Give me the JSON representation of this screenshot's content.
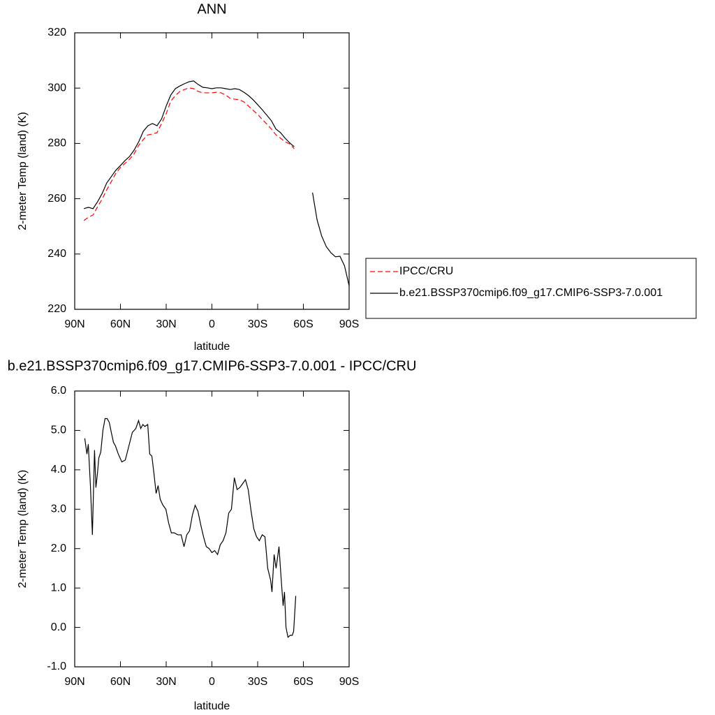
{
  "chart_data": [
    {
      "type": "line",
      "title": "ANN",
      "xlabel": "latitude",
      "ylabel": "2-meter Temp (land) (K)",
      "x": [
        84,
        81,
        78,
        75,
        72,
        69,
        66,
        63,
        60,
        57,
        54,
        51,
        48,
        45,
        42,
        39,
        36,
        33,
        30,
        27,
        24,
        21,
        18,
        15,
        12,
        9,
        6,
        3,
        0,
        -3,
        -6,
        -9,
        -12,
        -15,
        -18,
        -21,
        -24,
        -27,
        -30,
        -33,
        -36,
        -39,
        -42,
        -45,
        -48,
        -51,
        -54,
        -57,
        -60,
        -63,
        -66,
        -69,
        -72,
        -75,
        -78,
        -81,
        -84,
        -87,
        -90
      ],
      "series": [
        {
          "name": "IPCC/CRU",
          "color": "#ff0000",
          "dashed": true,
          "values": [
            252.1,
            253.3,
            254.1,
            257.1,
            259.9,
            263.2,
            266.2,
            269.2,
            271.3,
            272.8,
            274.3,
            276.3,
            279.3,
            281.4,
            283.1,
            283.4,
            283.9,
            287.2,
            290.7,
            295.3,
            297.3,
            298.8,
            299.5,
            300.1,
            299.8,
            298.8,
            298.3,
            298.3,
            298.3,
            298.5,
            298.3,
            297.5,
            296.3,
            296.0,
            295.8,
            295.0,
            293.5,
            292.0,
            290.5,
            288.7,
            287.0,
            285.2,
            283.1,
            281.9,
            280.6,
            279.8,
            278.1,
            null,
            null,
            null,
            null,
            null,
            null,
            null,
            null,
            null,
            null,
            null,
            null
          ]
        },
        {
          "name": "b.e21.BSSP370cmip6.f09_g17.CMIP6-SSP3-7.0.001",
          "color": "#000000",
          "dashed": false,
          "values": [
            256.4,
            256.9,
            256.4,
            258.9,
            261.9,
            265.7,
            268.0,
            270.3,
            272.0,
            273.8,
            275.3,
            277.6,
            280.6,
            284.4,
            286.4,
            287.2,
            286.4,
            288.9,
            293.5,
            297.5,
            299.8,
            300.8,
            301.6,
            302.3,
            302.6,
            301.3,
            300.3,
            300.1,
            299.8,
            300.1,
            300.1,
            299.8,
            299.5,
            299.8,
            299.5,
            298.5,
            297.3,
            295.8,
            294.0,
            292.2,
            290.2,
            288.2,
            285.2,
            283.9,
            281.9,
            280.2,
            278.8,
            null,
            null,
            null,
            262.2,
            252.3,
            246.5,
            242.7,
            240.5,
            239.0,
            239.2,
            235.7,
            228.5
          ]
        }
      ],
      "xlim": [
        90,
        -90
      ],
      "xticks": [
        {
          "value": 90,
          "label": "90N"
        },
        {
          "value": 60,
          "label": "60N"
        },
        {
          "value": 30,
          "label": "30N"
        },
        0,
        {
          "value": -30,
          "label": "30S"
        },
        {
          "value": -60,
          "label": "60S"
        },
        {
          "value": -90,
          "label": "90S"
        }
      ],
      "ylim": [
        220,
        320
      ],
      "yticks": [
        220,
        240,
        260,
        280,
        300,
        320
      ],
      "legend": "right"
    },
    {
      "type": "line",
      "title": "b.e21.BSSP370cmip6.f09_g17.CMIP6-SSP3-7.0.001 - IPCC/CRU",
      "xlabel": "latitude",
      "ylabel": "2-meter Temp (land) (K)",
      "x": [
        83.4,
        82.0,
        81.1,
        79.7,
        78.4,
        77.0,
        76.1,
        75.1,
        74.2,
        72.9,
        71.5,
        70.1,
        68.7,
        67.3,
        66.0,
        64.6,
        63.2,
        61.4,
        59.1,
        56.8,
        54.5,
        52.2,
        49.9,
        48.1,
        46.7,
        45.3,
        44.0,
        42.1,
        40.8,
        39.4,
        38.0,
        36.6,
        35.3,
        33.9,
        32.1,
        30.2,
        28.4,
        26.6,
        24.7,
        22.4,
        20.2,
        18.3,
        16.5,
        14.7,
        12.8,
        11.0,
        9.2,
        7.3,
        5.5,
        3.7,
        1.8,
        0,
        -1.8,
        -3.7,
        -5.5,
        -7.3,
        -9.2,
        -11.0,
        -12.8,
        -14.7,
        -16.5,
        -18.3,
        -20.2,
        -22.0,
        -23.8,
        -25.7,
        -27.5,
        -29.3,
        -31.1,
        -33.0,
        -34.8,
        -36.6,
        -38.5,
        -39.4,
        -40.8,
        -42.1,
        -44.0,
        -45.3,
        -46.7,
        -47.6,
        -48.6,
        -49.9,
        -51.3,
        -52.7,
        -53.6,
        -55.0
      ],
      "series": [
        {
          "color": "#000000",
          "dashed": false,
          "values": [
            4.8,
            4.4,
            4.65,
            3.6,
            2.35,
            4.5,
            3.55,
            3.9,
            4.3,
            4.45,
            5.0,
            5.3,
            5.3,
            5.2,
            4.95,
            4.7,
            4.6,
            4.4,
            4.2,
            4.25,
            4.6,
            4.95,
            5.05,
            5.25,
            5.05,
            5.15,
            5.1,
            5.15,
            4.4,
            4.35,
            3.9,
            3.4,
            3.6,
            3.25,
            3.1,
            3.0,
            2.65,
            2.4,
            2.4,
            2.35,
            2.35,
            2.05,
            2.35,
            2.45,
            2.85,
            3.1,
            2.95,
            2.6,
            2.3,
            2.05,
            2.0,
            1.9,
            1.95,
            1.85,
            2.1,
            2.2,
            2.4,
            2.9,
            3.0,
            3.8,
            3.5,
            3.55,
            3.65,
            3.75,
            3.5,
            2.95,
            2.5,
            2.3,
            2.2,
            2.35,
            2.3,
            1.5,
            1.2,
            0.9,
            1.85,
            1.5,
            2.05,
            1.3,
            0.55,
            0.9,
            0,
            -0.25,
            -0.2,
            -0.2,
            -0.1,
            0.8
          ]
        }
      ],
      "xlim": [
        90,
        -90
      ],
      "xticks": [
        {
          "value": 90,
          "label": "90N"
        },
        {
          "value": 60,
          "label": "60N"
        },
        {
          "value": 30,
          "label": "30N"
        },
        0,
        {
          "value": -30,
          "label": "30S"
        },
        {
          "value": -60,
          "label": "60S"
        },
        {
          "value": -90,
          "label": "90S"
        }
      ],
      "ylim": [
        -1,
        6
      ],
      "yticks": [
        {
          "value": -1,
          "label": "-1.0"
        },
        {
          "value": 0,
          "label": "0.0"
        },
        {
          "value": 1,
          "label": "1.0"
        },
        {
          "value": 2,
          "label": "2.0"
        },
        {
          "value": 3,
          "label": "3.0"
        },
        {
          "value": 4,
          "label": "4.0"
        },
        {
          "value": 5,
          "label": "5.0"
        },
        {
          "value": 6,
          "label": "6.0"
        }
      ]
    }
  ]
}
